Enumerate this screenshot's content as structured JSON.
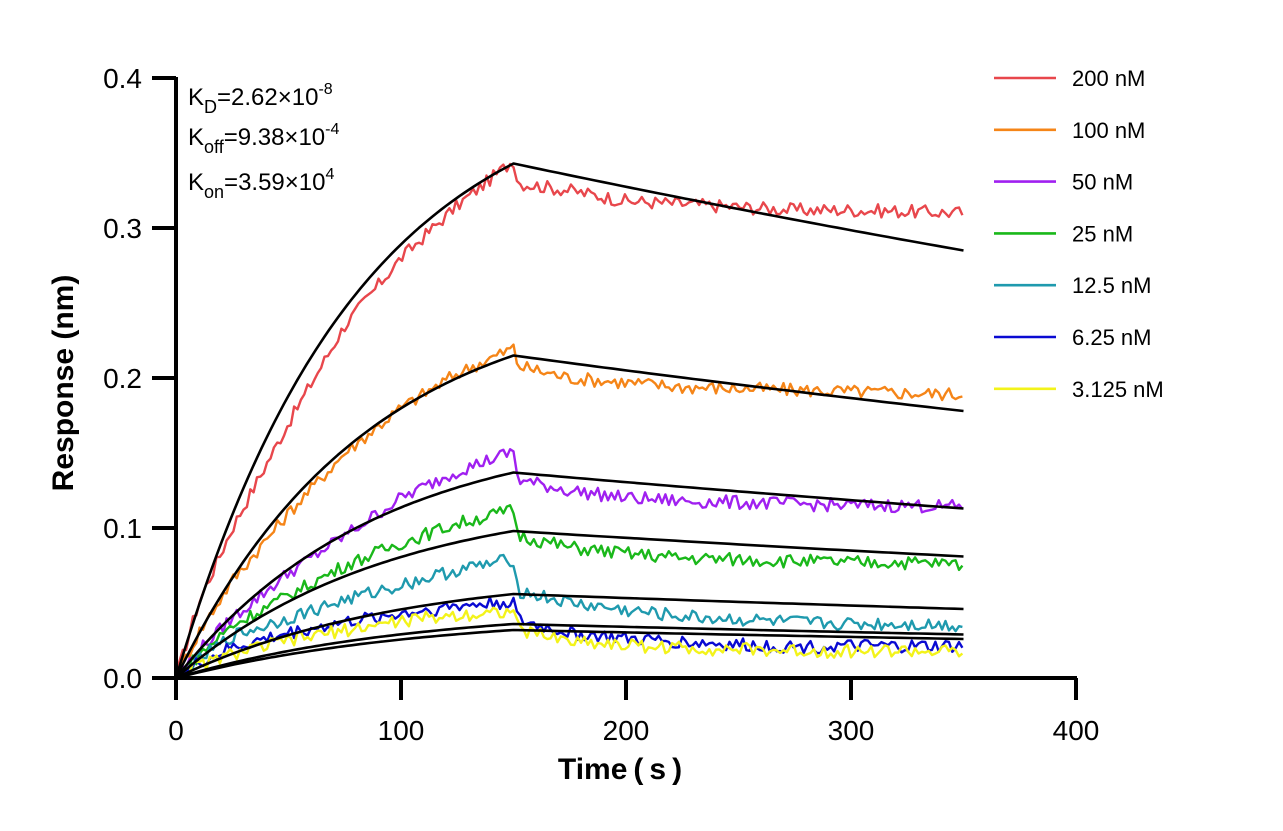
{
  "chart_data": {
    "type": "line",
    "title": "",
    "xlabel": "Time ( s )",
    "ylabel": "Response (nm)",
    "xlim": [
      0,
      400
    ],
    "ylim": [
      0,
      0.4
    ],
    "xticks": [
      "0",
      "100",
      "200",
      "300",
      "400"
    ],
    "yticks": [
      "0.0",
      "0.1",
      "0.2",
      "0.3",
      "0.4"
    ],
    "grid": false,
    "legend_position": "right",
    "association_end": 150,
    "dissociation_end": 350,
    "annotations": {
      "kd": {
        "base": "K",
        "sub": "D",
        "mid": "=2.62×10",
        "sup": "-8"
      },
      "koff": {
        "base": "K",
        "sub": "off",
        "mid": "=9.38×10",
        "sup": "-4"
      },
      "kon": {
        "base": "K",
        "sub": "on",
        "mid": "=3.59×10",
        "sup": "4"
      }
    },
    "series": [
      {
        "name": "200 nM",
        "color": "#e8474c",
        "data_points": [
          [
            0,
            0
          ],
          [
            10,
            0.05
          ],
          [
            25,
            0.1
          ],
          [
            50,
            0.17
          ],
          [
            75,
            0.235
          ],
          [
            100,
            0.28
          ],
          [
            125,
            0.315
          ],
          [
            150,
            0.345
          ],
          [
            152,
            0.33
          ],
          [
            175,
            0.325
          ],
          [
            200,
            0.318
          ],
          [
            225,
            0.316
          ],
          [
            250,
            0.314
          ],
          [
            275,
            0.312
          ],
          [
            300,
            0.312
          ],
          [
            325,
            0.311
          ],
          [
            350,
            0.31
          ]
        ],
        "fit_peak": 0.343,
        "fit_end": 0.285
      },
      {
        "name": "100 nM",
        "color": "#f58518",
        "data_points": [
          [
            0,
            0
          ],
          [
            10,
            0.03
          ],
          [
            25,
            0.065
          ],
          [
            50,
            0.11
          ],
          [
            75,
            0.15
          ],
          [
            100,
            0.18
          ],
          [
            125,
            0.203
          ],
          [
            150,
            0.22
          ],
          [
            152,
            0.208
          ],
          [
            175,
            0.2
          ],
          [
            200,
            0.197
          ],
          [
            225,
            0.194
          ],
          [
            250,
            0.193
          ],
          [
            275,
            0.192
          ],
          [
            300,
            0.191
          ],
          [
            325,
            0.19
          ],
          [
            350,
            0.189
          ]
        ],
        "fit_peak": 0.215,
        "fit_end": 0.178
      },
      {
        "name": "50 nM",
        "color": "#a020f0",
        "data_points": [
          [
            0,
            0
          ],
          [
            10,
            0.018
          ],
          [
            25,
            0.04
          ],
          [
            50,
            0.07
          ],
          [
            75,
            0.095
          ],
          [
            100,
            0.12
          ],
          [
            125,
            0.138
          ],
          [
            150,
            0.151
          ],
          [
            152,
            0.132
          ],
          [
            175,
            0.125
          ],
          [
            200,
            0.12
          ],
          [
            225,
            0.118
          ],
          [
            250,
            0.117
          ],
          [
            275,
            0.116
          ],
          [
            300,
            0.115
          ],
          [
            325,
            0.115
          ],
          [
            350,
            0.114
          ]
        ],
        "fit_peak": 0.137,
        "fit_end": 0.113
      },
      {
        "name": "25 nM",
        "color": "#1ab81a",
        "data_points": [
          [
            0,
            0
          ],
          [
            10,
            0.015
          ],
          [
            25,
            0.035
          ],
          [
            50,
            0.055
          ],
          [
            75,
            0.075
          ],
          [
            100,
            0.09
          ],
          [
            125,
            0.103
          ],
          [
            150,
            0.112
          ],
          [
            152,
            0.095
          ],
          [
            175,
            0.087
          ],
          [
            200,
            0.083
          ],
          [
            225,
            0.08
          ],
          [
            250,
            0.079
          ],
          [
            275,
            0.078
          ],
          [
            300,
            0.077
          ],
          [
            325,
            0.077
          ],
          [
            350,
            0.076
          ]
        ],
        "fit_peak": 0.098,
        "fit_end": 0.081
      },
      {
        "name": "12.5 nM",
        "color": "#1f9aae",
        "data_points": [
          [
            0,
            0
          ],
          [
            10,
            0.012
          ],
          [
            25,
            0.028
          ],
          [
            50,
            0.04
          ],
          [
            75,
            0.052
          ],
          [
            100,
            0.062
          ],
          [
            125,
            0.072
          ],
          [
            150,
            0.079
          ],
          [
            152,
            0.058
          ],
          [
            175,
            0.05
          ],
          [
            200,
            0.045
          ],
          [
            225,
            0.041
          ],
          [
            250,
            0.039
          ],
          [
            275,
            0.037
          ],
          [
            300,
            0.036
          ],
          [
            325,
            0.036
          ],
          [
            350,
            0.035
          ]
        ],
        "fit_peak": 0.056,
        "fit_end": 0.046
      },
      {
        "name": "6.25 nM",
        "color": "#0a0ad2",
        "data_points": [
          [
            0,
            0
          ],
          [
            10,
            0.01
          ],
          [
            25,
            0.02
          ],
          [
            50,
            0.03
          ],
          [
            75,
            0.037
          ],
          [
            100,
            0.043
          ],
          [
            125,
            0.048
          ],
          [
            150,
            0.051
          ],
          [
            152,
            0.038
          ],
          [
            175,
            0.03
          ],
          [
            200,
            0.026
          ],
          [
            225,
            0.024
          ],
          [
            250,
            0.022
          ],
          [
            275,
            0.021
          ],
          [
            300,
            0.021
          ],
          [
            325,
            0.021
          ],
          [
            350,
            0.021
          ]
        ],
        "fit_peak": 0.036,
        "fit_end": 0.029
      },
      {
        "name": "3.125 nM",
        "color": "#f3f31a",
        "data_points": [
          [
            0,
            0
          ],
          [
            10,
            0.008
          ],
          [
            25,
            0.016
          ],
          [
            50,
            0.025
          ],
          [
            75,
            0.032
          ],
          [
            100,
            0.038
          ],
          [
            125,
            0.042
          ],
          [
            150,
            0.045
          ],
          [
            152,
            0.032
          ],
          [
            175,
            0.025
          ],
          [
            200,
            0.022
          ],
          [
            225,
            0.02
          ],
          [
            250,
            0.019
          ],
          [
            275,
            0.018
          ],
          [
            300,
            0.018
          ],
          [
            325,
            0.018
          ],
          [
            350,
            0.017
          ]
        ],
        "fit_peak": 0.032,
        "fit_end": 0.026
      }
    ]
  }
}
